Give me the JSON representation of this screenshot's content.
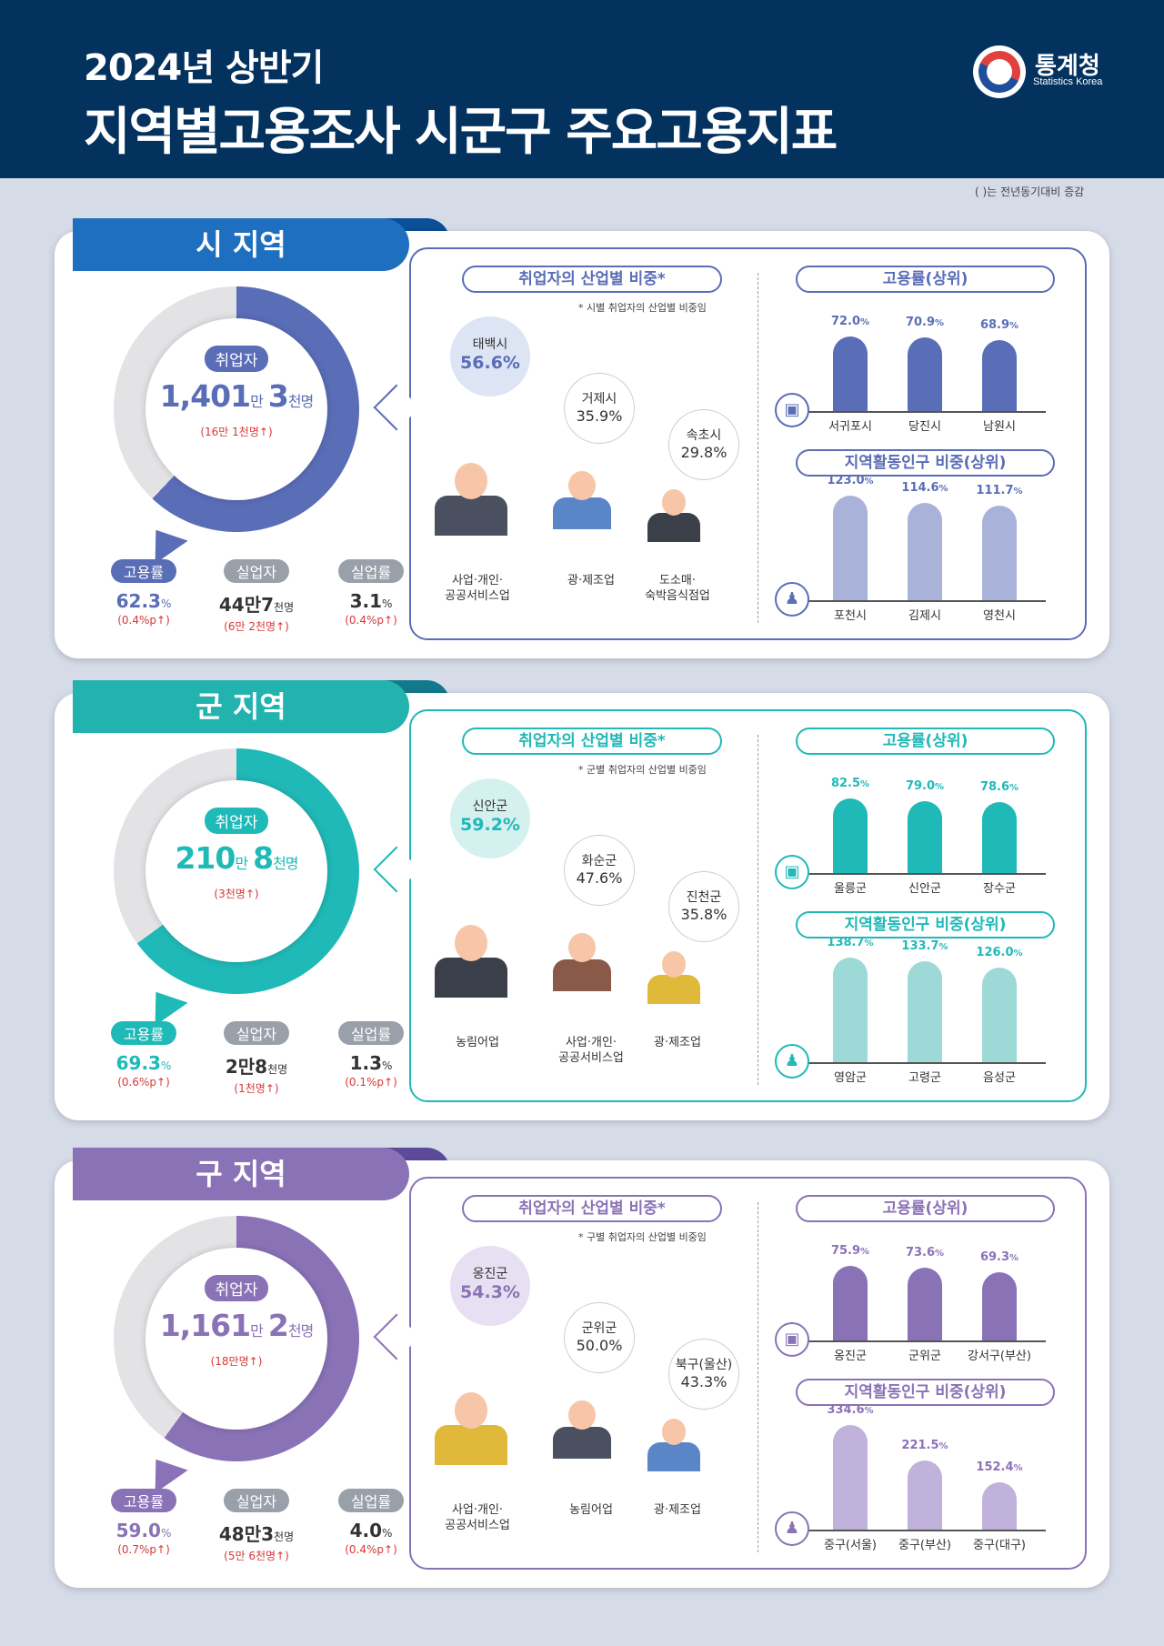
{
  "header": {
    "line1": "2024년 상반기",
    "line2": "지역별고용조사 시군구 주요고용지표",
    "logo_name": "통계청",
    "logo_eng": "Statistics Korea"
  },
  "note": "(    )는 전년동기대비 증감",
  "colors": {
    "si": "#5a6db7",
    "gun": "#1fb9b7",
    "gu": "#8a72b6",
    "navy": "#04325f",
    "up": "#d93838"
  },
  "sections": [
    {
      "tab": "시 지역",
      "employed_label": "취업자",
      "employed": {
        "a": "1,401",
        "u1": "만",
        "b": "3",
        "u2": "천명"
      },
      "employed_change": "(16만 1천명",
      "stats": [
        {
          "label": "고용률",
          "value": "62.3",
          "unit": "%",
          "change": "(0.4%p"
        },
        {
          "label": "실업자",
          "value": "44만7",
          "unit": "천명",
          "change": "(6만 2천명"
        },
        {
          "label": "실업률",
          "value": "3.1",
          "unit": "%",
          "change": "(0.4%p"
        }
      ],
      "industry_title": "취업자의 산업별 비중*",
      "industry_note": "* 시별 취업자의 산업별 비중임",
      "bubbles": [
        {
          "name": "태백시",
          "pct": "56.6%"
        },
        {
          "name": "거제시",
          "pct": "35.9%"
        },
        {
          "name": "속초시",
          "pct": "29.8%"
        }
      ],
      "industries": [
        "사업·개인·\n공공서비스업",
        "광·제조업",
        "도소매·\n숙박음식점업"
      ],
      "emp_title": "고용률(상위)",
      "emp_top": [
        {
          "name": "서귀포시",
          "value": "72.0",
          "unit": "%"
        },
        {
          "name": "당진시",
          "value": "70.9",
          "unit": "%"
        },
        {
          "name": "남원시",
          "value": "68.9",
          "unit": "%"
        }
      ],
      "act_title": "지역활동인구 비중(상위)",
      "act_top": [
        {
          "name": "포천시",
          "value": "123.0",
          "unit": "%"
        },
        {
          "name": "김제시",
          "value": "114.6",
          "unit": "%"
        },
        {
          "name": "영천시",
          "value": "111.7",
          "unit": "%"
        }
      ]
    },
    {
      "tab": "군 지역",
      "employed_label": "취업자",
      "employed": {
        "a": "210",
        "u1": "만",
        "b": "8",
        "u2": "천명"
      },
      "employed_change": "(3천명",
      "stats": [
        {
          "label": "고용률",
          "value": "69.3",
          "unit": "%",
          "change": "(0.6%p"
        },
        {
          "label": "실업자",
          "value": "2만8",
          "unit": "천명",
          "change": "(1천명"
        },
        {
          "label": "실업률",
          "value": "1.3",
          "unit": "%",
          "change": "(0.1%p"
        }
      ],
      "industry_title": "취업자의 산업별 비중*",
      "industry_note": "* 군별 취업자의 산업별 비중임",
      "bubbles": [
        {
          "name": "신안군",
          "pct": "59.2%"
        },
        {
          "name": "화순군",
          "pct": "47.6%"
        },
        {
          "name": "진천군",
          "pct": "35.8%"
        }
      ],
      "industries": [
        "농림어업",
        "사업·개인·\n공공서비스업",
        "광·제조업"
      ],
      "emp_title": "고용률(상위)",
      "emp_top": [
        {
          "name": "울릉군",
          "value": "82.5",
          "unit": "%"
        },
        {
          "name": "신안군",
          "value": "79.0",
          "unit": "%"
        },
        {
          "name": "장수군",
          "value": "78.6",
          "unit": "%"
        }
      ],
      "act_title": "지역활동인구 비중(상위)",
      "act_top": [
        {
          "name": "영암군",
          "value": "138.7",
          "unit": "%"
        },
        {
          "name": "고령군",
          "value": "133.7",
          "unit": "%"
        },
        {
          "name": "음성군",
          "value": "126.0",
          "unit": "%"
        }
      ]
    },
    {
      "tab": "구 지역",
      "employed_label": "취업자",
      "employed": {
        "a": "1,161",
        "u1": "만",
        "b": "2",
        "u2": "천명"
      },
      "employed_change": "(18만명",
      "stats": [
        {
          "label": "고용률",
          "value": "59.0",
          "unit": "%",
          "change": "(0.7%p"
        },
        {
          "label": "실업자",
          "value": "48만3",
          "unit": "천명",
          "change": "(5만 6천명"
        },
        {
          "label": "실업률",
          "value": "4.0",
          "unit": "%",
          "change": "(0.4%p"
        }
      ],
      "industry_title": "취업자의 산업별 비중*",
      "industry_note": "* 구별 취업자의 산업별 비중임",
      "bubbles": [
        {
          "name": "옹진군",
          "pct": "54.3%"
        },
        {
          "name": "군위군",
          "pct": "50.0%"
        },
        {
          "name": "북구(울산)",
          "pct": "43.3%"
        }
      ],
      "industries": [
        "사업·개인·\n공공서비스업",
        "농림어업",
        "광·제조업"
      ],
      "emp_title": "고용률(상위)",
      "emp_top": [
        {
          "name": "옹진군",
          "value": "75.9",
          "unit": "%"
        },
        {
          "name": "군위군",
          "value": "73.6",
          "unit": "%"
        },
        {
          "name": "강서구(부산)",
          "value": "69.3",
          "unit": "%"
        }
      ],
      "act_title": "지역활동인구 비중(상위)",
      "act_top": [
        {
          "name": "중구(서울)",
          "value": "334.6",
          "unit": "%"
        },
        {
          "name": "중구(부산)",
          "value": "221.5",
          "unit": "%"
        },
        {
          "name": "중구(대구)",
          "value": "152.4",
          "unit": "%"
        }
      ]
    }
  ]
}
